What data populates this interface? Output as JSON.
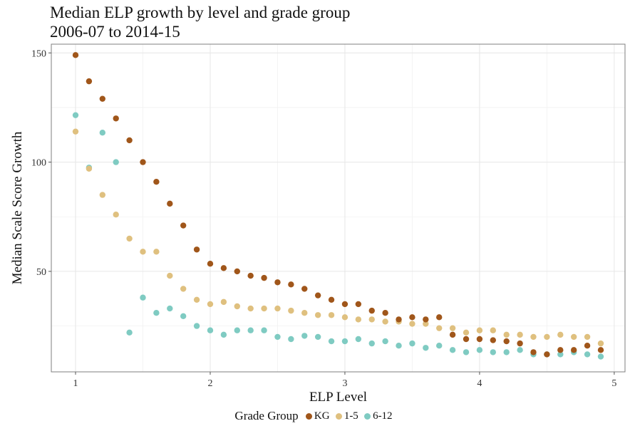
{
  "chart_data": {
    "type": "scatter",
    "title": "Median ELP growth by level and grade group",
    "subtitle": "2006-07 to 2014-15",
    "xlabel": "ELP Level",
    "ylabel": "Median Scale Score Growth",
    "xlim": [
      0.82,
      5.08
    ],
    "ylim": [
      4,
      154
    ],
    "x_ticks": [
      1,
      2,
      3,
      4,
      5
    ],
    "y_ticks": [
      50,
      100,
      150
    ],
    "grid": true,
    "legend": {
      "title": "Grade Group",
      "position": "bottom"
    },
    "series": [
      {
        "name": "KG",
        "color": "#a0561a",
        "points": [
          [
            1.0,
            149
          ],
          [
            1.1,
            137
          ],
          [
            1.2,
            129
          ],
          [
            1.3,
            120
          ],
          [
            1.4,
            110
          ],
          [
            1.5,
            100
          ],
          [
            1.6,
            91
          ],
          [
            1.7,
            81
          ],
          [
            1.8,
            71
          ],
          [
            1.9,
            60
          ],
          [
            2.0,
            53.5
          ],
          [
            2.1,
            51.5
          ],
          [
            2.2,
            50
          ],
          [
            2.3,
            48
          ],
          [
            2.4,
            47
          ],
          [
            2.5,
            45
          ],
          [
            2.6,
            44
          ],
          [
            2.7,
            42
          ],
          [
            2.8,
            39
          ],
          [
            2.9,
            37
          ],
          [
            3.0,
            35
          ],
          [
            3.1,
            35
          ],
          [
            3.2,
            32
          ],
          [
            3.3,
            31
          ],
          [
            3.4,
            28
          ],
          [
            3.5,
            29
          ],
          [
            3.6,
            28
          ],
          [
            3.7,
            29
          ],
          [
            3.8,
            21
          ],
          [
            3.9,
            19
          ],
          [
            4.0,
            19
          ],
          [
            4.1,
            18.5
          ],
          [
            4.2,
            18
          ],
          [
            4.3,
            17
          ],
          [
            4.4,
            13
          ],
          [
            4.5,
            12
          ],
          [
            4.6,
            14
          ],
          [
            4.7,
            14
          ],
          [
            4.8,
            16
          ],
          [
            4.9,
            14
          ]
        ]
      },
      {
        "name": "1-5",
        "color": "#dfc07f",
        "points": [
          [
            1.0,
            114
          ],
          [
            1.1,
            97
          ],
          [
            1.2,
            85
          ],
          [
            1.3,
            76
          ],
          [
            1.4,
            65
          ],
          [
            1.5,
            59
          ],
          [
            1.6,
            59
          ],
          [
            1.7,
            48
          ],
          [
            1.8,
            42
          ],
          [
            1.9,
            37
          ],
          [
            2.0,
            35
          ],
          [
            2.1,
            36
          ],
          [
            2.2,
            34
          ],
          [
            2.3,
            33
          ],
          [
            2.4,
            33
          ],
          [
            2.5,
            33
          ],
          [
            2.6,
            32
          ],
          [
            2.7,
            31
          ],
          [
            2.8,
            30
          ],
          [
            2.9,
            30
          ],
          [
            3.0,
            29
          ],
          [
            3.1,
            28
          ],
          [
            3.2,
            28
          ],
          [
            3.3,
            27
          ],
          [
            3.4,
            27
          ],
          [
            3.5,
            26
          ],
          [
            3.6,
            26
          ],
          [
            3.7,
            24
          ],
          [
            3.8,
            24
          ],
          [
            3.9,
            22
          ],
          [
            4.0,
            23
          ],
          [
            4.1,
            23
          ],
          [
            4.2,
            21
          ],
          [
            4.3,
            21
          ],
          [
            4.4,
            20
          ],
          [
            4.5,
            20
          ],
          [
            4.6,
            21
          ],
          [
            4.7,
            20
          ],
          [
            4.8,
            20
          ],
          [
            4.9,
            17
          ]
        ]
      },
      {
        "name": "6-12",
        "color": "#7fcbc2",
        "points": [
          [
            1.0,
            121.5
          ],
          [
            1.1,
            97.5
          ],
          [
            1.2,
            113.5
          ],
          [
            1.3,
            100
          ],
          [
            1.4,
            22
          ],
          [
            1.5,
            38
          ],
          [
            1.6,
            31
          ],
          [
            1.7,
            33
          ],
          [
            1.8,
            29.5
          ],
          [
            1.9,
            25
          ],
          [
            2.0,
            23
          ],
          [
            2.1,
            21
          ],
          [
            2.2,
            23
          ],
          [
            2.3,
            23
          ],
          [
            2.4,
            23
          ],
          [
            2.5,
            20
          ],
          [
            2.6,
            19
          ],
          [
            2.7,
            20.5
          ],
          [
            2.8,
            20
          ],
          [
            2.9,
            18
          ],
          [
            3.0,
            18
          ],
          [
            3.1,
            19
          ],
          [
            3.2,
            17
          ],
          [
            3.3,
            18
          ],
          [
            3.4,
            16
          ],
          [
            3.5,
            17
          ],
          [
            3.6,
            15
          ],
          [
            3.7,
            16
          ],
          [
            3.8,
            14
          ],
          [
            3.9,
            13
          ],
          [
            4.0,
            14
          ],
          [
            4.1,
            13
          ],
          [
            4.2,
            13
          ],
          [
            4.3,
            14
          ],
          [
            4.4,
            12
          ],
          [
            4.5,
            12
          ],
          [
            4.6,
            12
          ],
          [
            4.7,
            13
          ],
          [
            4.8,
            12
          ],
          [
            4.9,
            11
          ]
        ]
      }
    ]
  }
}
